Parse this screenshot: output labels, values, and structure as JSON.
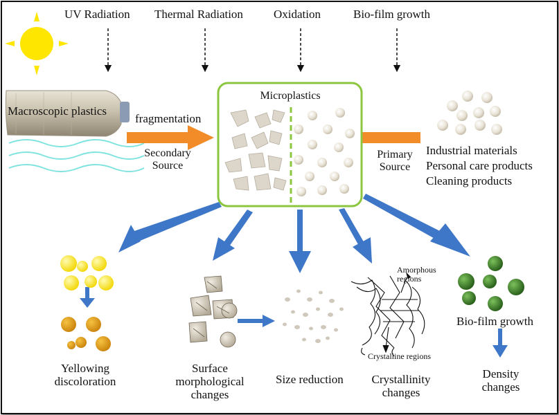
{
  "top_labels": {
    "uv": "UV Radiation",
    "thermal": "Thermal Radiation",
    "oxidation": "Oxidation",
    "biofilm": "Bio-film growth"
  },
  "macroscopic_plastics": "Macroscopic plastics",
  "fragmentation": "fragmentation",
  "secondary_source": [
    "Secondary",
    "Source"
  ],
  "microplastics_title": "Microplastics",
  "primary_source": [
    "Primary",
    "Source"
  ],
  "primary_sources_list": [
    "Industrial materials",
    "Personal care products",
    "Cleaning products"
  ],
  "effects": {
    "yellowing": [
      "Yellowing",
      "discoloration"
    ],
    "surface": [
      "Surface",
      "morphological",
      "changes"
    ],
    "size_reduction": "Size reduction",
    "crystallinity": [
      "Crystallinity",
      "changes"
    ],
    "amorphous": [
      "Amorphous",
      "regions"
    ],
    "crystalline": "Crystalline regions",
    "biofilm": "Bio-film growth",
    "density": [
      "Density",
      "changes"
    ]
  },
  "colors": {
    "box_border": "#8cc63f",
    "orange_arrow": "#f28c28",
    "blue_arrow": "#3f77c8",
    "sun": "#ffe600",
    "water_lines": "#7fe3e0",
    "yellow_particle": "#ffe833",
    "dark_yellow_particle": "#e5a213",
    "green_particle": "#3c8a2c"
  },
  "icons": [
    "sun-icon",
    "bottle-icon",
    "water-waves-icon"
  ]
}
